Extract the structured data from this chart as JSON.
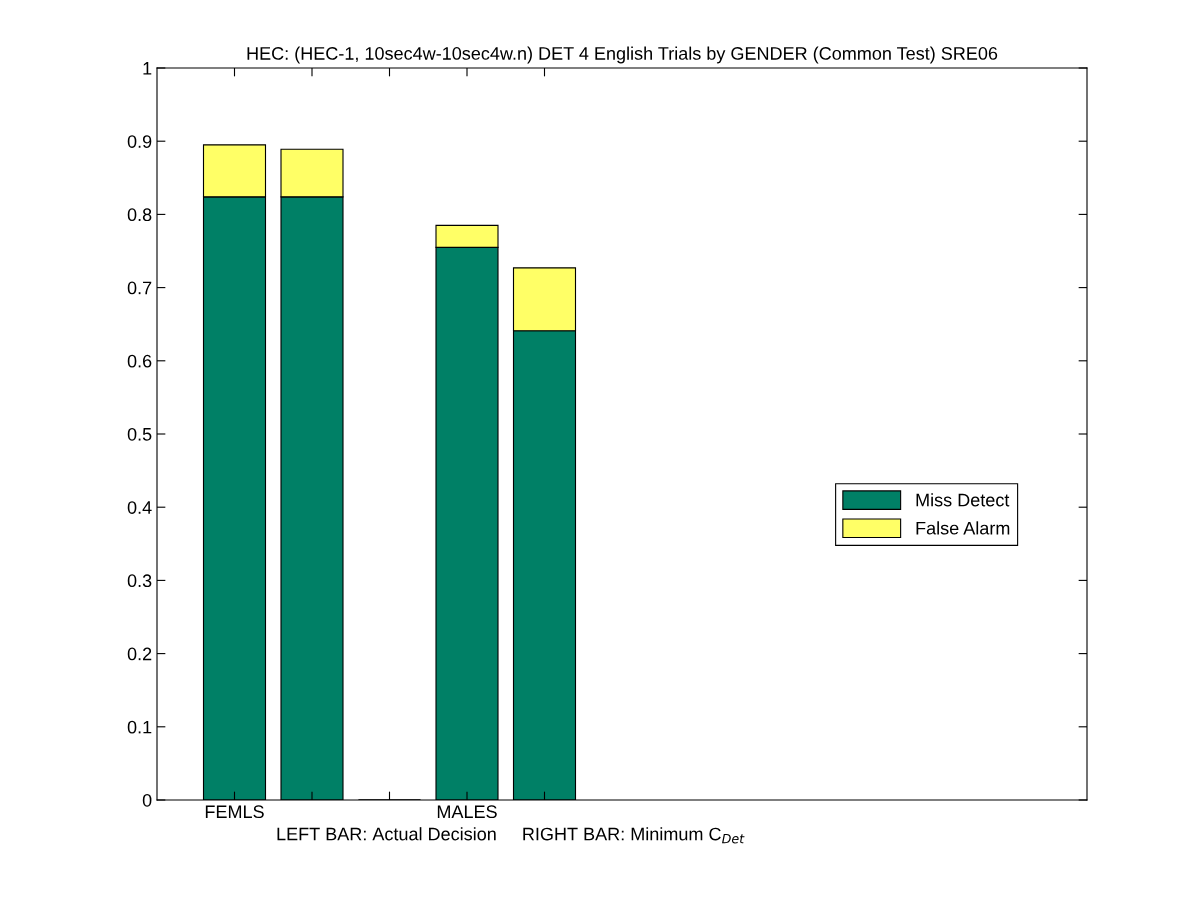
{
  "chart_data": {
    "type": "bar",
    "title": "HEC: (HEC-1, 10sec4w-10sec4w.n) DET 4 English Trials by GENDER (Common Test) SRE06",
    "xlabel": "LEFT BAR: Actual Decision     RIGHT BAR: Minimum C$_{Det}$",
    "categories": [
      "FEMLS",
      null,
      null,
      "MALES",
      null
    ],
    "stacked": true,
    "series": [
      {
        "name": "Miss Detect",
        "color": "#008066",
        "values": [
          0.824,
          0.824,
          null,
          0.755,
          0.641
        ]
      },
      {
        "name": "False Alarm",
        "color": "#ffff66",
        "values": [
          0.071,
          0.065,
          null,
          0.03,
          0.086
        ]
      }
    ],
    "ylim": [
      0,
      1
    ],
    "yticks": [
      0,
      0.1,
      0.2,
      0.3,
      0.4,
      0.5,
      0.6,
      0.7,
      0.8,
      0.9,
      1
    ],
    "grid": false,
    "legend": "right"
  }
}
